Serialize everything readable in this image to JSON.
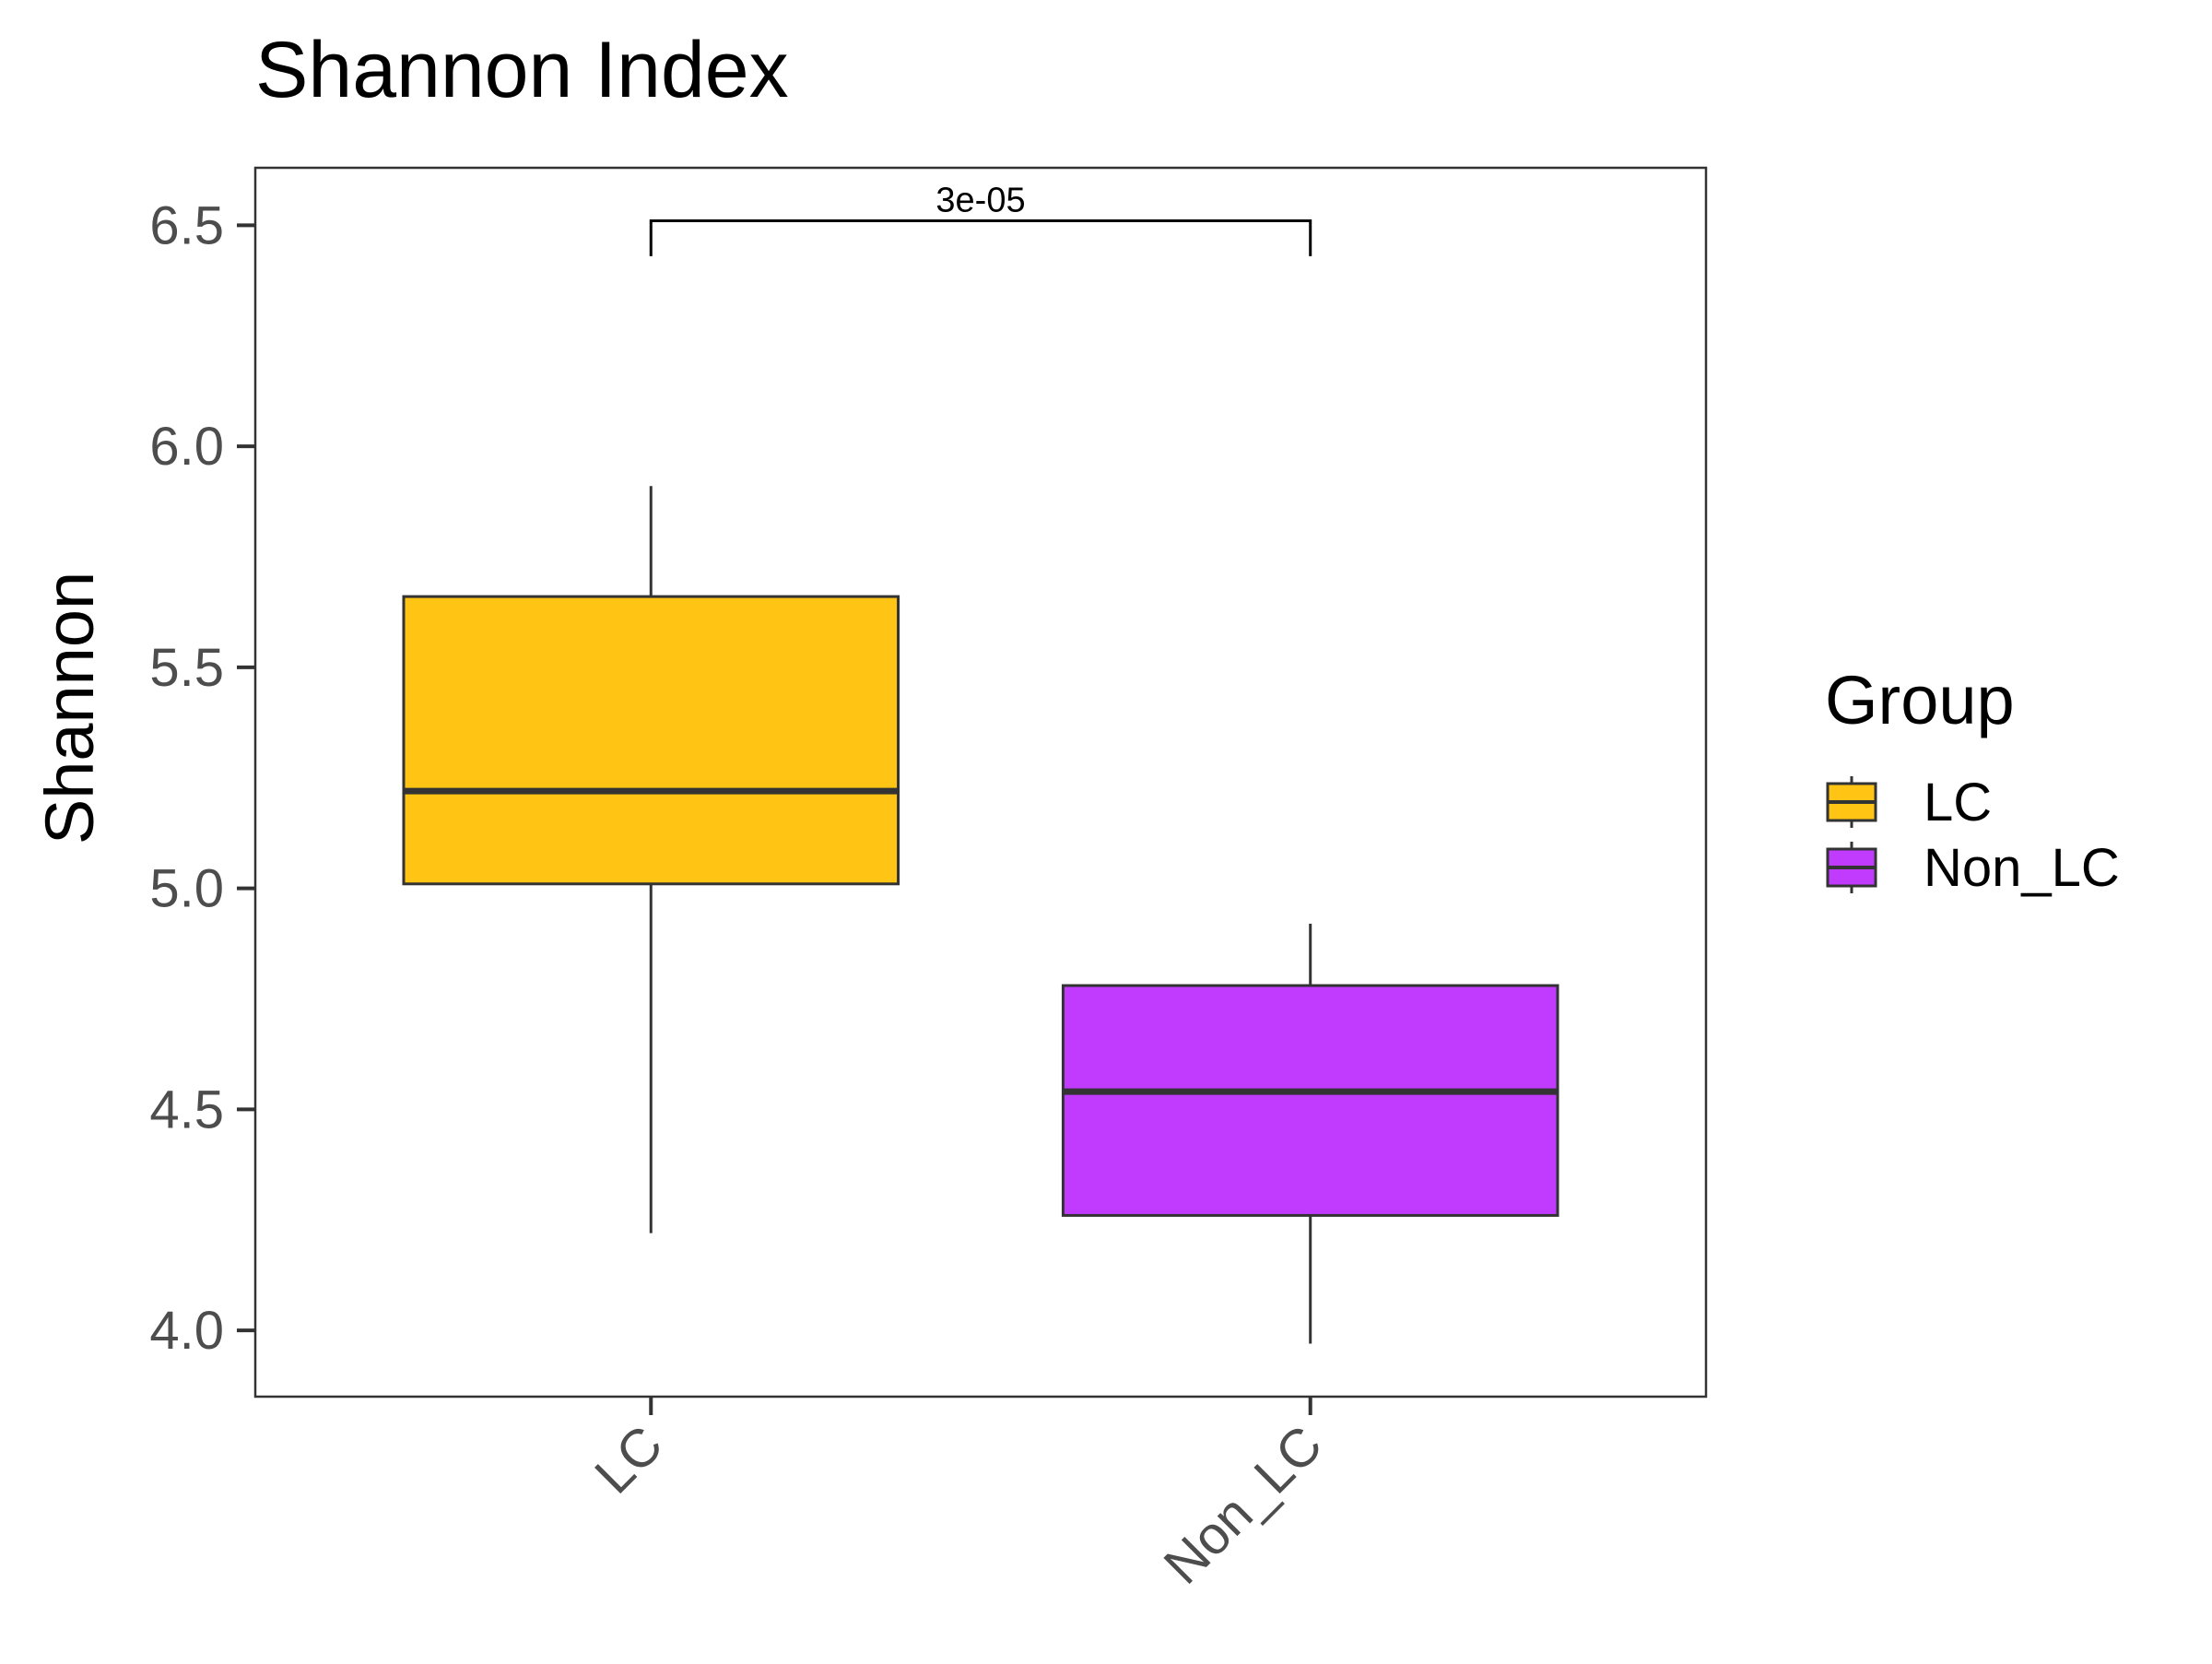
{
  "chart_data": {
    "type": "box",
    "title": "Shannon Index",
    "ylabel": "Shannon",
    "xlabel": "",
    "ylim": [
      3.85,
      6.63
    ],
    "yticks": [
      4.0,
      4.5,
      5.0,
      5.5,
      6.0,
      6.5
    ],
    "ytick_labels": [
      "4.0",
      "4.5",
      "5.0",
      "5.5",
      "6.0",
      "6.5"
    ],
    "categories": [
      "LC",
      "Non_LC"
    ],
    "boxes": [
      {
        "group": "LC",
        "whisker_low": 4.22,
        "q1": 5.01,
        "median": 5.22,
        "q3": 5.66,
        "whisker_high": 5.91,
        "color": "#FFC414"
      },
      {
        "group": "Non_LC",
        "whisker_low": 3.97,
        "q1": 4.26,
        "median": 4.54,
        "q3": 4.78,
        "whisker_high": 4.92,
        "color": "#C13BFF"
      }
    ],
    "comparisons": [
      {
        "from": "LC",
        "to": "Non_LC",
        "label": "3e-05",
        "bracket_y": 6.51,
        "tip_y": 6.43
      }
    ],
    "legend": {
      "title": "Group",
      "position": "right",
      "items": [
        {
          "label": "LC",
          "color": "#FFC414"
        },
        {
          "label": "Non_LC",
          "color": "#C13BFF"
        }
      ]
    },
    "grid": false
  }
}
